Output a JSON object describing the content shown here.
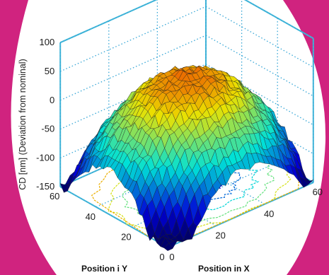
{
  "colors": {
    "frame_accent": "#d0237f",
    "box_edge": "#3fb6d8",
    "grid_dots": "#36a6d6"
  },
  "chart_data": {
    "type": "surface3d",
    "title": "",
    "xlabel": "Position in X",
    "ylabel": "Position i Y",
    "zlabel": "CD [nm] (Deviation from nominal)",
    "xlim": [
      0,
      60
    ],
    "ylim": [
      0,
      60
    ],
    "zlim": [
      -150,
      100
    ],
    "x_ticks": [
      "0",
      "20",
      "40",
      "60"
    ],
    "y_ticks": [
      "0",
      "20",
      "40",
      "60"
    ],
    "z_ticks": [
      "-150",
      "-100",
      "-50",
      "0",
      "50",
      "100"
    ],
    "grid": true,
    "colormap": "jet",
    "contour_projection": true,
    "surface_peak_approx": {
      "x": 30,
      "y": 30,
      "z": 40
    },
    "surface_min_approx": {
      "x": 0,
      "y": 0,
      "z": -150
    }
  }
}
